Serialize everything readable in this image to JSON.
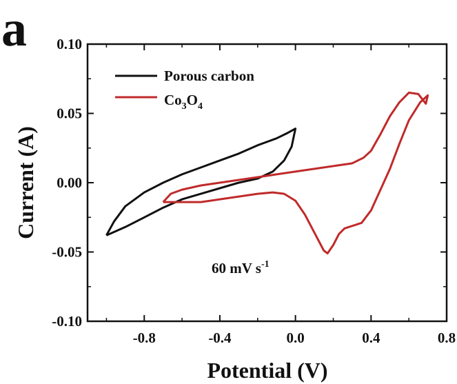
{
  "panel_label": "a",
  "chart_data": {
    "type": "line",
    "title": "",
    "xlabel": "Potential (V)",
    "ylabel": "Current (A)",
    "xlim": [
      -1.1,
      0.8
    ],
    "ylim": [
      -0.1,
      0.1
    ],
    "x_ticks": [
      "-0.8",
      "-0.4",
      "0.0",
      "0.4",
      "0.8"
    ],
    "x_tick_values": [
      -0.8,
      -0.4,
      0.0,
      0.4,
      0.8
    ],
    "y_ticks": [
      "0.10",
      "0.05",
      "0.00",
      "-0.05",
      "-0.10"
    ],
    "y_tick_values": [
      0.1,
      0.05,
      0.0,
      -0.05,
      -0.1
    ],
    "grid": false,
    "legend_position": "top-left",
    "legend": [
      {
        "name_main": "Porous carbon",
        "sub_parts": []
      },
      {
        "name_main": "Co",
        "sub_parts": [
          "3",
          "O",
          "4"
        ]
      }
    ],
    "annotation": {
      "text": "60 mV s",
      "superscript": "-1"
    },
    "series": [
      {
        "name": "Porous carbon",
        "color": "#111111",
        "points": [
          [
            -1.0,
            -0.038
          ],
          [
            -0.9,
            -0.032
          ],
          [
            -0.8,
            -0.025
          ],
          [
            -0.7,
            -0.018
          ],
          [
            -0.6,
            -0.012
          ],
          [
            -0.5,
            -0.008
          ],
          [
            -0.4,
            -0.004
          ],
          [
            -0.3,
            0.0
          ],
          [
            -0.2,
            0.003
          ],
          [
            -0.12,
            0.008
          ],
          [
            -0.06,
            0.016
          ],
          [
            -0.02,
            0.026
          ],
          [
            0.0,
            0.039
          ],
          [
            -0.04,
            0.036
          ],
          [
            -0.1,
            0.032
          ],
          [
            -0.2,
            0.027
          ],
          [
            -0.3,
            0.021
          ],
          [
            -0.4,
            0.016
          ],
          [
            -0.5,
            0.011
          ],
          [
            -0.6,
            0.006
          ],
          [
            -0.7,
            0.0
          ],
          [
            -0.8,
            -0.007
          ],
          [
            -0.9,
            -0.017
          ],
          [
            -0.96,
            -0.028
          ],
          [
            -1.0,
            -0.038
          ]
        ]
      },
      {
        "name": "Co3O4",
        "color": "#c02a2a",
        "points": [
          [
            -0.7,
            -0.014
          ],
          [
            -0.6,
            -0.014
          ],
          [
            -0.5,
            -0.014
          ],
          [
            -0.4,
            -0.012
          ],
          [
            -0.3,
            -0.01
          ],
          [
            -0.2,
            -0.008
          ],
          [
            -0.12,
            -0.007
          ],
          [
            -0.06,
            -0.008
          ],
          [
            0.0,
            -0.013
          ],
          [
            0.05,
            -0.023
          ],
          [
            0.1,
            -0.036
          ],
          [
            0.15,
            -0.049
          ],
          [
            0.17,
            -0.051
          ],
          [
            0.2,
            -0.045
          ],
          [
            0.23,
            -0.037
          ],
          [
            0.26,
            -0.033
          ],
          [
            0.35,
            -0.029
          ],
          [
            0.4,
            -0.02
          ],
          [
            0.45,
            -0.005
          ],
          [
            0.5,
            0.01
          ],
          [
            0.55,
            0.028
          ],
          [
            0.6,
            0.045
          ],
          [
            0.66,
            0.058
          ],
          [
            0.7,
            0.063
          ],
          [
            0.69,
            0.057
          ],
          [
            0.65,
            0.064
          ],
          [
            0.6,
            0.065
          ],
          [
            0.55,
            0.058
          ],
          [
            0.5,
            0.048
          ],
          [
            0.45,
            0.035
          ],
          [
            0.4,
            0.023
          ],
          [
            0.36,
            0.018
          ],
          [
            0.3,
            0.014
          ],
          [
            0.2,
            0.012
          ],
          [
            0.1,
            0.01
          ],
          [
            0.0,
            0.008
          ],
          [
            -0.1,
            0.006
          ],
          [
            -0.2,
            0.004
          ],
          [
            -0.3,
            0.002
          ],
          [
            -0.4,
            0.0
          ],
          [
            -0.5,
            -0.002
          ],
          [
            -0.6,
            -0.005
          ],
          [
            -0.66,
            -0.008
          ],
          [
            -0.7,
            -0.014
          ]
        ]
      }
    ]
  }
}
